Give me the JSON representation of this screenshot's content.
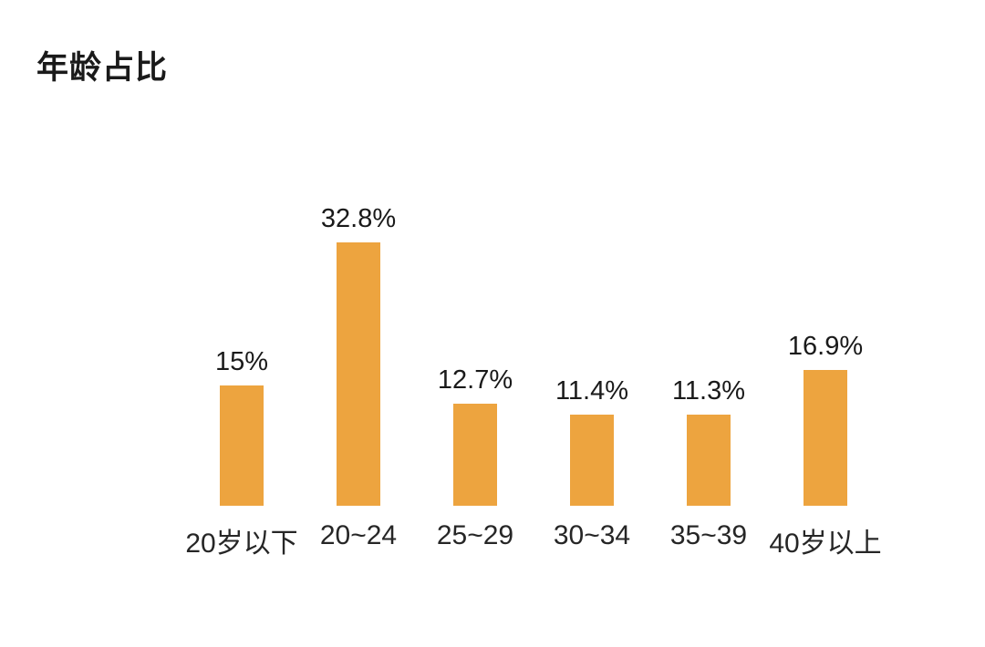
{
  "chart_data": {
    "type": "bar",
    "title": "年龄占比",
    "categories": [
      "20岁以下",
      "20~24",
      "25~29",
      "30~34",
      "35~39",
      "40岁以上"
    ],
    "values": [
      15,
      32.8,
      12.7,
      11.4,
      11.3,
      16.9
    ],
    "value_labels": [
      "15%",
      "32.8%",
      "12.7%",
      "11.4%",
      "11.3%",
      "16.9%"
    ],
    "xlabel": "",
    "ylabel": "",
    "ylim": [
      0,
      35
    ],
    "grid": false,
    "legend": false,
    "bar_color": "#EDA43F",
    "title_color": "#1a1a1a",
    "label_color": "#262626",
    "background_color": "#ffffff"
  }
}
